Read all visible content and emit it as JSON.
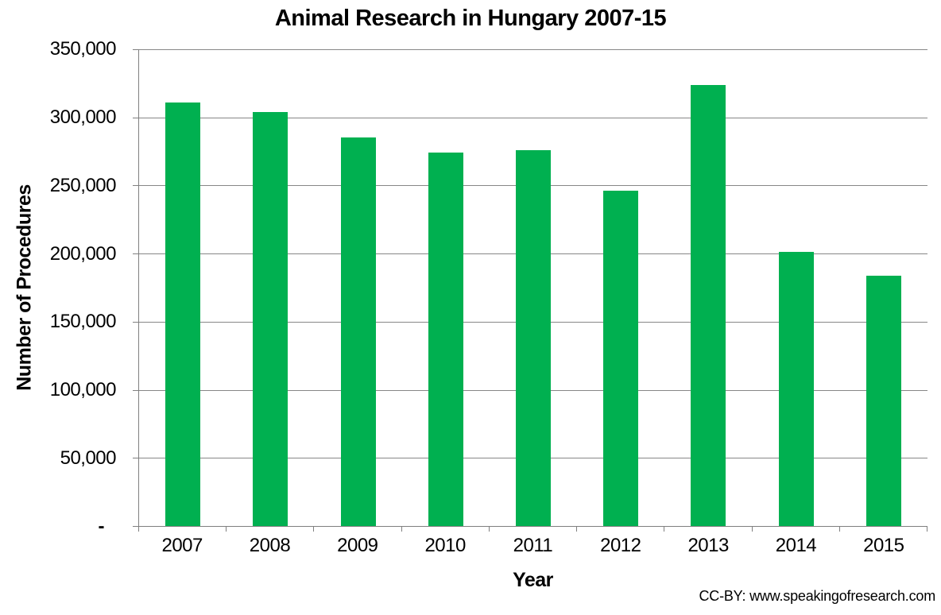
{
  "chart_data": {
    "type": "bar",
    "title": "Animal Research in Hungary 2007-15",
    "xlabel": "Year",
    "ylabel": "Number of Procedures",
    "categories": [
      "2007",
      "2008",
      "2009",
      "2010",
      "2011",
      "2012",
      "2013",
      "2014",
      "2015"
    ],
    "values": [
      311000,
      304000,
      285000,
      274000,
      276000,
      246000,
      324000,
      201000,
      184000
    ],
    "ylim": [
      0,
      350000
    ],
    "ytick_interval": 50000,
    "ytick_labels_bottom_up": [
      "-",
      "50,000",
      "100,000",
      "150,000",
      "200,000",
      "250,000",
      "300,000",
      "350,000"
    ],
    "grid": true,
    "legend_position": "none"
  },
  "colors": {
    "bar": "#00B050",
    "gridline": "#878787",
    "axis": "#808080",
    "text": "#000000",
    "background": "#FFFFFF"
  },
  "attribution": "CC-BY: www.speakingofresearch.com"
}
